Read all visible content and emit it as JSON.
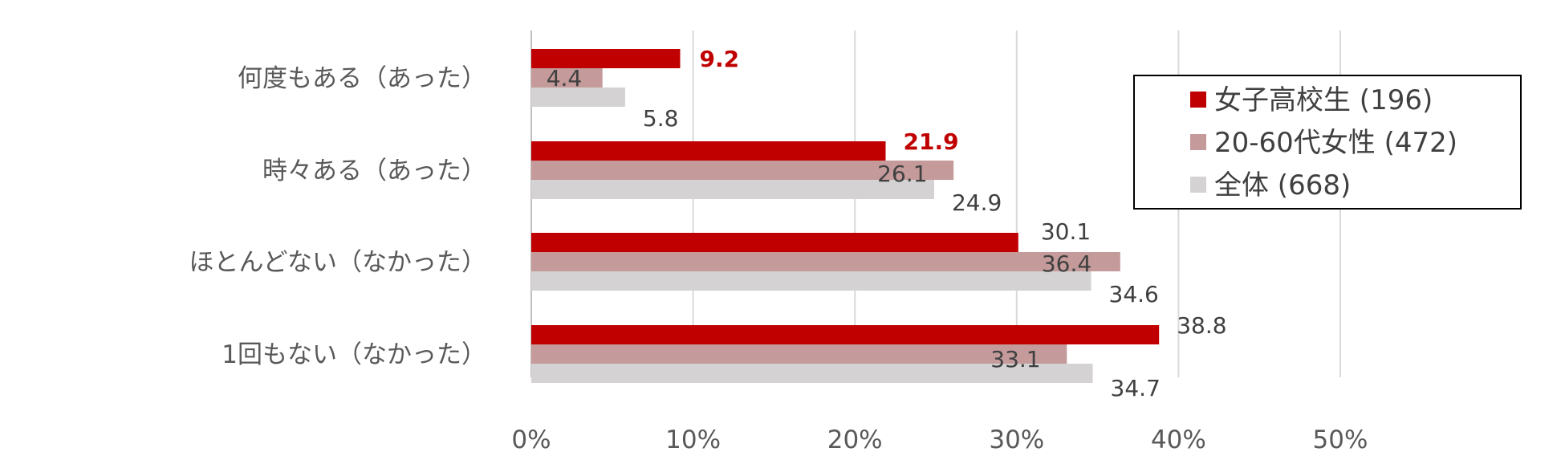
{
  "chart_data": {
    "type": "bar",
    "orientation": "horizontal",
    "categories": [
      "何度もある（あった）",
      "時々ある（あった）",
      "ほとんどない（なかった）",
      "1回もない（なかった）"
    ],
    "series": [
      {
        "name": "女子高校生 (196)",
        "color": "#c00000",
        "values": [
          9.2,
          21.9,
          30.1,
          38.8
        ]
      },
      {
        "name": "20-60代女性 (472)",
        "color": "#c49a9a",
        "values": [
          4.4,
          26.1,
          36.4,
          33.1
        ]
      },
      {
        "name": "全体 (668)",
        "color": "#d4d2d2",
        "values": [
          5.8,
          24.9,
          34.6,
          34.7
        ]
      }
    ],
    "highlighted_labels": [
      [
        0,
        0
      ],
      [
        1,
        0
      ]
    ],
    "xlim": [
      0,
      50
    ],
    "xticks": [
      0,
      10,
      20,
      30,
      40,
      50
    ],
    "xtick_labels": [
      "0%",
      "10%",
      "20%",
      "30%",
      "40%",
      "50%"
    ],
    "grid": "vertical",
    "legend_position": "top-right"
  }
}
